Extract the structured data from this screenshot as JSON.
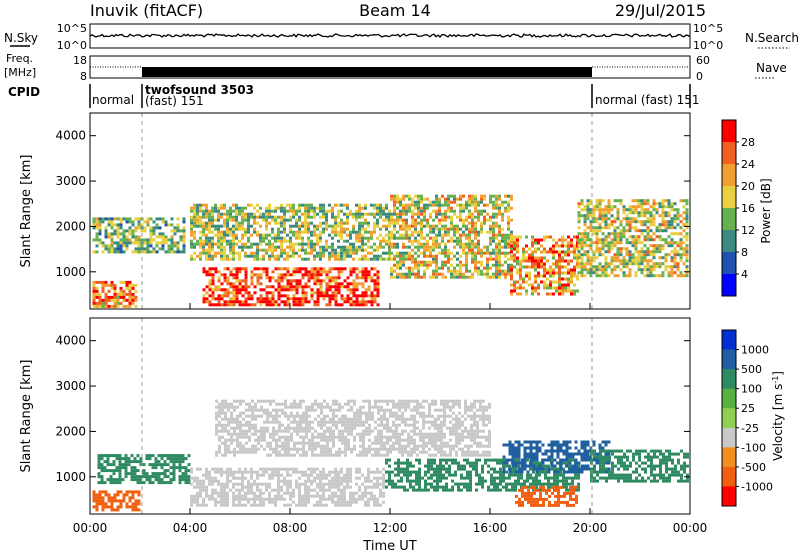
{
  "header": {
    "station": "Inuvik (fitACF)",
    "beam": "Beam 14",
    "date": "29/Jul/2015"
  },
  "top_panels": {
    "nsky_label": "N.Sky",
    "nsky_ticks": [
      "10^5",
      "10^0"
    ],
    "nsearch_label": "N.Search",
    "nsearch_ticks": [
      "10^5",
      "10^0"
    ],
    "freq_label_line1": "Freq.",
    "freq_label_line2": "[MHz]",
    "freq_ticks": [
      "18",
      "8"
    ],
    "nave_label": "Nave",
    "nave_ticks": [
      "60",
      "0"
    ],
    "cpid_label": "CPID",
    "cpid_segments": [
      {
        "label": "normal",
        "start": 0,
        "end": 2
      },
      {
        "label": "twofsound 3503",
        "label2": "(fast) 151",
        "start": 2,
        "end": 20
      },
      {
        "label": "normal (fast) 151",
        "start": 20,
        "end": 24
      }
    ]
  },
  "x_axis": {
    "label": "Time UT",
    "ticks": [
      "00:00",
      "04:00",
      "08:00",
      "12:00",
      "16:00",
      "20:00",
      "00:00"
    ],
    "range_hours": [
      0,
      24
    ]
  },
  "power_colorbar": {
    "label": "Power [dB]",
    "ticks": [
      "28",
      "24",
      "20",
      "16",
      "12",
      "8",
      "4"
    ],
    "colors": [
      "#0000ff",
      "#2050b0",
      "#3a8a80",
      "#66b050",
      "#e8d040",
      "#f0a030",
      "#f06020",
      "#ff0000"
    ]
  },
  "velocity_colorbar": {
    "label": "Velocity [m s^-1]",
    "ticks": [
      "1000",
      "500",
      "100",
      "25",
      "-25",
      "-100",
      "-500",
      "-1000"
    ],
    "colors": [
      "#0030d0",
      "#2060a0",
      "#2e8a60",
      "#58b040",
      "#90d050",
      "#c8c8c8",
      "#f09020",
      "#f06010",
      "#ff0000"
    ]
  },
  "chart_data": [
    {
      "type": "heatmap",
      "title": "Power",
      "xlabel": "Time UT",
      "ylabel": "Slant Range [km]",
      "x_range_hours": [
        0,
        24
      ],
      "ylim": [
        180,
        4500
      ],
      "y_ticks": [
        1000,
        2000,
        3000,
        4000
      ],
      "units": "dB",
      "regions": [
        {
          "t0": 0.1,
          "t1": 3.8,
          "r0": 1450,
          "r1": 2200,
          "value": 14
        },
        {
          "t0": 0.1,
          "t1": 1.8,
          "r0": 250,
          "r1": 800,
          "value": 24
        },
        {
          "t0": 4.5,
          "t1": 11.5,
          "r0": 250,
          "r1": 1100,
          "value": 29
        },
        {
          "t0": 4.0,
          "t1": 12.0,
          "r0": 1300,
          "r1": 2500,
          "value": 16
        },
        {
          "t0": 12.0,
          "t1": 16.8,
          "r0": 900,
          "r1": 2700,
          "value": 18
        },
        {
          "t0": 16.8,
          "t1": 19.5,
          "r0": 500,
          "r1": 1800,
          "value": 23
        },
        {
          "t0": 19.5,
          "t1": 23.9,
          "r0": 900,
          "r1": 2600,
          "value": 17
        }
      ]
    },
    {
      "type": "heatmap",
      "title": "Velocity",
      "xlabel": "Time UT",
      "ylabel": "Slant Range [km]",
      "x_range_hours": [
        0,
        24
      ],
      "ylim": [
        180,
        4500
      ],
      "y_ticks": [
        1000,
        2000,
        3000,
        4000
      ],
      "units": "m s^-1",
      "regions": [
        {
          "t0": 0.1,
          "t1": 2.0,
          "r0": 250,
          "r1": 700,
          "value": -400
        },
        {
          "t0": 0.3,
          "t1": 4.0,
          "r0": 900,
          "r1": 1500,
          "value": 200
        },
        {
          "t0": 4.0,
          "t1": 11.8,
          "r0": 400,
          "r1": 1200,
          "value": 0
        },
        {
          "t0": 5.0,
          "t1": 16.0,
          "r0": 1500,
          "r1": 2700,
          "value": 0
        },
        {
          "t0": 11.8,
          "t1": 19.5,
          "r0": 700,
          "r1": 1400,
          "value": 150
        },
        {
          "t0": 17.0,
          "t1": 19.5,
          "r0": 400,
          "r1": 800,
          "value": -300
        },
        {
          "t0": 16.5,
          "t1": 20.8,
          "r0": 1100,
          "r1": 1800,
          "value": 700
        },
        {
          "t0": 20.0,
          "t1": 23.9,
          "r0": 900,
          "r1": 1600,
          "value": 300
        }
      ]
    }
  ]
}
